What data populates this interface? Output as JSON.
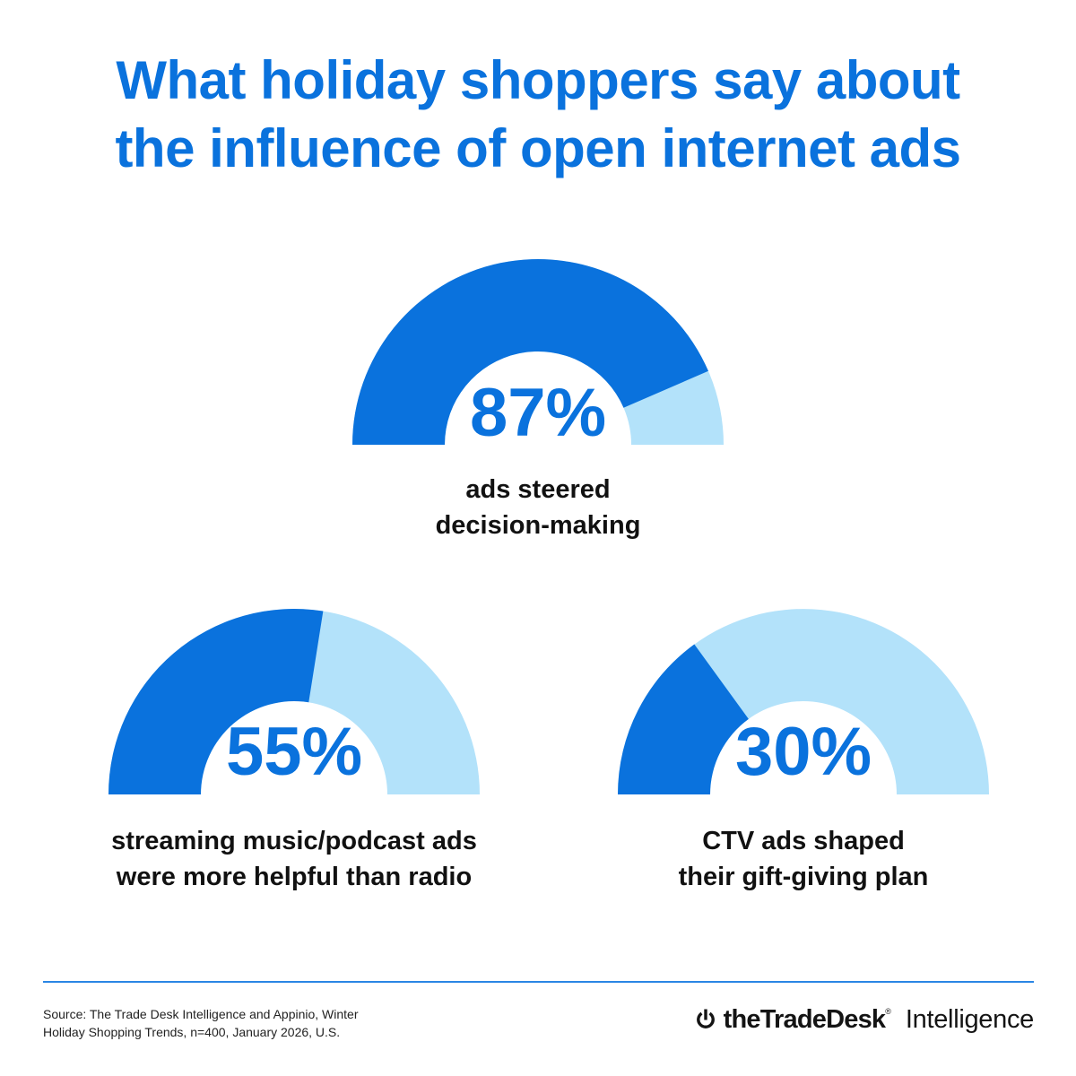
{
  "title": {
    "line1": "What holiday shoppers say about",
    "line2": "the influence of open internet ads"
  },
  "colors": {
    "primary": "#0a72dd",
    "secondary": "#b3e2fa",
    "text": "#111111",
    "divider": "#2a86e4"
  },
  "chart_data": [
    {
      "type": "gauge",
      "value": 87,
      "label": "87%",
      "caption_lines": [
        "ads steered",
        "decision-making"
      ]
    },
    {
      "type": "gauge",
      "value": 55,
      "label": "55%",
      "caption_lines": [
        "streaming music/podcast ads",
        "were more helpful than radio"
      ]
    },
    {
      "type": "gauge",
      "value": 30,
      "label": "30%",
      "caption_lines": [
        "CTV ads shaped",
        "their gift-giving plan"
      ]
    }
  ],
  "footer": {
    "source_line1": "Source: The Trade Desk Intelligence and Appinio, Winter",
    "source_line2": "Holiday Shopping Trends, n=400, January 2026, U.S.",
    "brand_name": "theTradeDesk",
    "brand_mark": "®",
    "brand_sub": "Intelligence",
    "brand_icon": "power-icon"
  }
}
